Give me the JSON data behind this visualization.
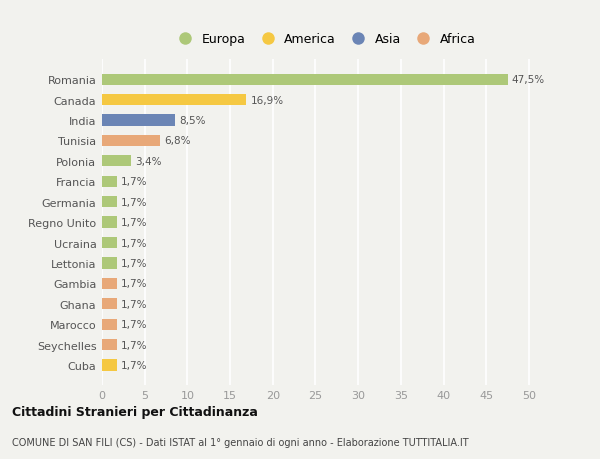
{
  "categories": [
    "Romania",
    "Canada",
    "India",
    "Tunisia",
    "Polonia",
    "Francia",
    "Germania",
    "Regno Unito",
    "Ucraina",
    "Lettonia",
    "Gambia",
    "Ghana",
    "Marocco",
    "Seychelles",
    "Cuba"
  ],
  "values": [
    47.5,
    16.9,
    8.5,
    6.8,
    3.4,
    1.7,
    1.7,
    1.7,
    1.7,
    1.7,
    1.7,
    1.7,
    1.7,
    1.7,
    1.7
  ],
  "labels": [
    "47,5%",
    "16,9%",
    "8,5%",
    "6,8%",
    "3,4%",
    "1,7%",
    "1,7%",
    "1,7%",
    "1,7%",
    "1,7%",
    "1,7%",
    "1,7%",
    "1,7%",
    "1,7%",
    "1,7%"
  ],
  "continents": [
    "Europa",
    "America",
    "Asia",
    "Africa",
    "Europa",
    "Europa",
    "Europa",
    "Europa",
    "Europa",
    "Europa",
    "Africa",
    "Africa",
    "Africa",
    "Africa",
    "America"
  ],
  "colors": {
    "Europa": "#adc878",
    "America": "#f5c842",
    "Asia": "#6b85b5",
    "Africa": "#e8a878"
  },
  "legend_order": [
    "Europa",
    "America",
    "Asia",
    "Africa"
  ],
  "xlim": [
    0,
    52
  ],
  "xticks": [
    0,
    5,
    10,
    15,
    20,
    25,
    30,
    35,
    40,
    45,
    50
  ],
  "title": "Cittadini Stranieri per Cittadinanza",
  "subtitle": "COMUNE DI SAN FILI (CS) - Dati ISTAT al 1° gennaio di ogni anno - Elaborazione TUTTITALIA.IT",
  "background_color": "#f2f2ee",
  "grid_color": "#ffffff",
  "bar_height": 0.55,
  "label_fontsize": 7.5,
  "ytick_fontsize": 8,
  "xtick_fontsize": 8
}
